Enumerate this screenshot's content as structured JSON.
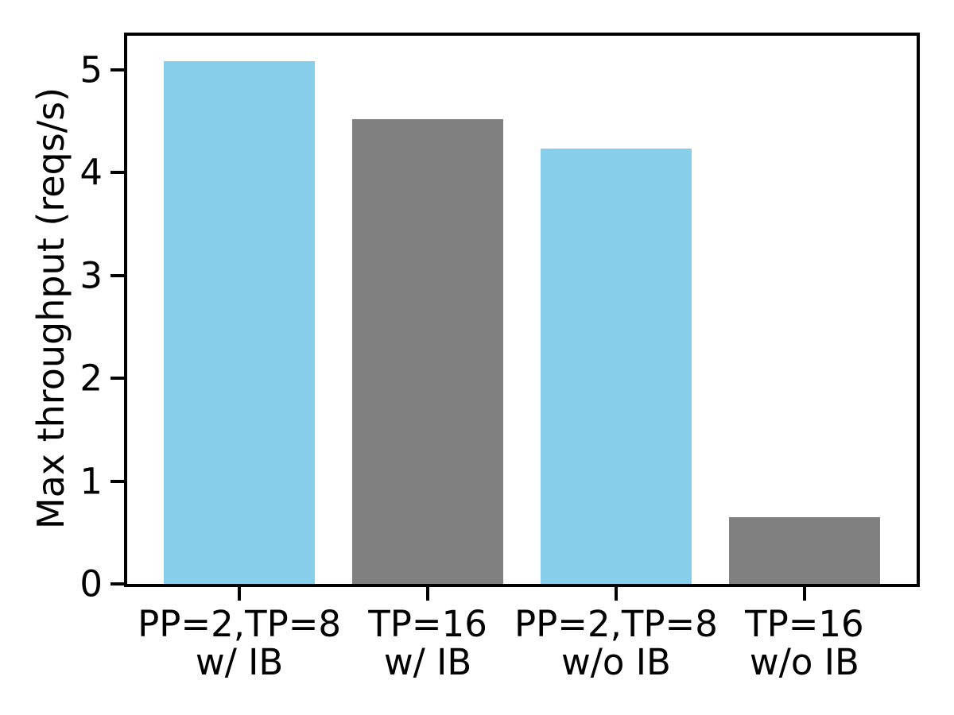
{
  "chart_data": {
    "type": "bar",
    "title": "",
    "xlabel": "",
    "ylabel": "Max throughput (reqs/s)",
    "categories": [
      "PP=2,TP=8\nw/ IB",
      "TP=16\nw/ IB",
      "PP=2,TP=8\nw/o IB",
      "TP=16\nw/o IB"
    ],
    "values": [
      5.08,
      4.52,
      4.23,
      0.65
    ],
    "bar_colors": [
      "#87ceeb",
      "#808080",
      "#87ceeb",
      "#808080"
    ],
    "bar_names": [
      "bar-pp2-tp8-with-ib",
      "bar-tp16-with-ib",
      "bar-pp2-tp8-without-ib",
      "bar-tp16-without-ib"
    ],
    "ylim": [
      0,
      5.33
    ],
    "yticks": [
      0,
      1,
      2,
      3,
      4,
      5
    ],
    "grid": false,
    "legend": null,
    "spine_color": "#000000",
    "text_color": "#000000"
  }
}
